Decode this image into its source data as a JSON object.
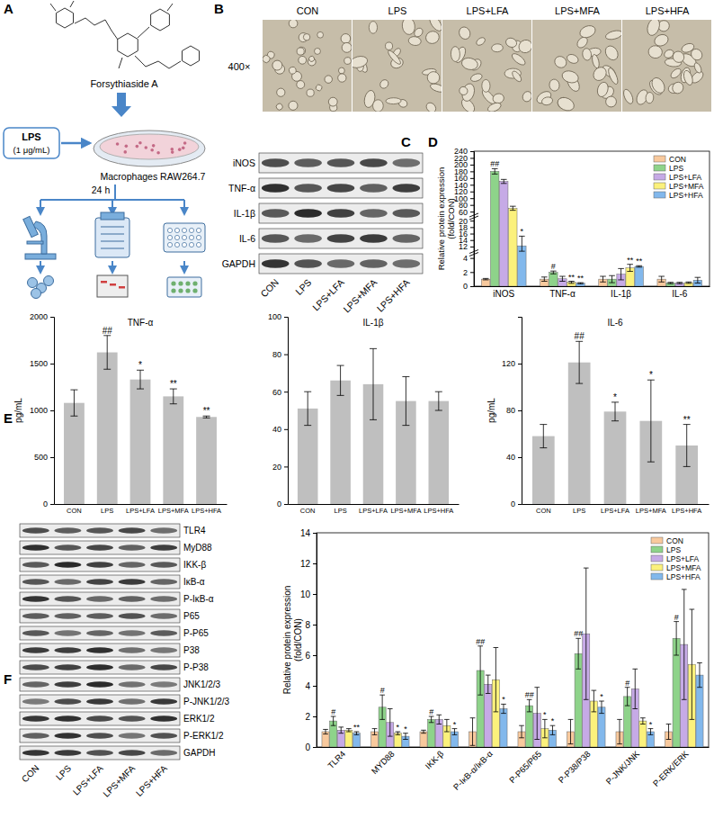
{
  "panel_labels": [
    "A",
    "B",
    "C",
    "D",
    "E",
    "F"
  ],
  "groups": [
    "CON",
    "LPS",
    "LPS+LFA",
    "LPS+MFA",
    "LPS+HFA"
  ],
  "schematic": {
    "compound": "Forsythiaside A",
    "stimulus": "LPS",
    "dose": "(1 μg/mL)",
    "cells": "Macrophages RAW264.7",
    "duration": "24 h"
  },
  "micrographs": {
    "magnification": "400×"
  },
  "blot_c": {
    "proteins": [
      "iNOS",
      "TNF-α",
      "IL-1β",
      "IL-6",
      "GAPDH"
    ]
  },
  "blot_f": {
    "proteins": [
      "TLR4",
      "MyD88",
      "IKK-β",
      "IκB-α",
      "P-IκB-α",
      "P65",
      "P-P65",
      "P38",
      "P-P38",
      "JNK1/2/3",
      "P-JNK1/2/3",
      "ERK1/2",
      "P-ERK1/2",
      "GAPDH"
    ]
  },
  "chart_data": [
    {
      "type": "bar",
      "categories": [
        "iNOS",
        "TNF-α",
        "IL-1β",
        "IL-6"
      ],
      "y_label": "Relative protein expression (fold/CON)",
      "ylim": [
        0,
        240
      ],
      "y_breaks": [
        [
          4.4,
          11
        ],
        [
          20.6,
          55
        ]
      ],
      "yticks": [
        0,
        2,
        4,
        12,
        14,
        16,
        18,
        20,
        60,
        80,
        100,
        120,
        140,
        160,
        180,
        200,
        220,
        240
      ],
      "legend": "upper right",
      "series": [
        {
          "name": "CON",
          "color": "#f8c99d",
          "values": [
            1,
            1,
            1,
            1
          ],
          "errors": [
            0.1,
            0.3,
            0.4,
            0.4
          ],
          "significance": [
            null,
            null,
            null,
            null
          ]
        },
        {
          "name": "LPS",
          "color": "#8ed38a",
          "values": [
            180,
            1.95,
            1,
            0.45
          ],
          "errors": [
            8,
            0.2,
            0.5,
            0.1
          ],
          "significance": [
            "##",
            "#",
            null,
            null
          ]
        },
        {
          "name": "LPS+LFA",
          "color": "#c6aae6",
          "values": [
            150,
            1.05,
            1.7,
            0.45
          ],
          "errors": [
            6,
            0.35,
            0.8,
            0.1
          ],
          "significance": [
            null,
            null,
            null,
            null
          ]
        },
        {
          "name": "LPS+MFA",
          "color": "#fbf17c",
          "values": [
            70,
            0.55,
            2.6,
            0.5
          ],
          "errors": [
            6,
            0.15,
            0.5,
            0.1
          ],
          "significance": [
            null,
            "**",
            "**",
            null
          ]
        },
        {
          "name": "LPS+HFA",
          "color": "#82b8ec",
          "values": [
            12.2,
            0.42,
            2.8,
            0.85
          ],
          "errors": [
            3,
            0.08,
            0.1,
            0.4
          ],
          "significance": [
            "*",
            "**",
            "**",
            null
          ]
        }
      ]
    },
    {
      "type": "bar",
      "title": "TNF-α",
      "y_label": "pg/mL",
      "categories": [
        "CON",
        "LPS",
        "LPS+LFA",
        "LPS+MFA",
        "LPS+HFA"
      ],
      "values": [
        1080,
        1620,
        1330,
        1150,
        930
      ],
      "errors": [
        140,
        180,
        100,
        80,
        10
      ],
      "significance": [
        null,
        "##",
        "*",
        "**",
        "**"
      ],
      "color": "#bfbfbf",
      "ylim": [
        0,
        2000
      ],
      "yticks": [
        0,
        500,
        1000,
        1500,
        2000
      ]
    },
    {
      "type": "bar",
      "title": "IL-1β",
      "categories": [
        "CON",
        "LPS",
        "LPS+LFA",
        "LPS+MFA",
        "LPS+HFA"
      ],
      "values": [
        51,
        66,
        64,
        55,
        55
      ],
      "errors": [
        9,
        8,
        19,
        13,
        5
      ],
      "color": "#bfbfbf",
      "ylim": [
        0,
        100
      ],
      "yticks": [
        0,
        20,
        40,
        60,
        80,
        100
      ]
    },
    {
      "type": "bar",
      "title": "IL-6",
      "y_label": "pg/mL",
      "categories": [
        "CON",
        "LPS",
        "LPS+LFA",
        "LPS+MFA",
        "LPS+HFA"
      ],
      "values": [
        58,
        121,
        79,
        71,
        50
      ],
      "errors": [
        10,
        18,
        8,
        35,
        18
      ],
      "significance": [
        null,
        "##",
        "*",
        "*",
        "**"
      ],
      "color": "#bfbfbf",
      "ylim": [
        0,
        160
      ],
      "yticks": [
        0,
        40,
        80,
        120
      ]
    },
    {
      "type": "bar",
      "categories": [
        "TLR4",
        "MYD88",
        "IKK-β",
        "P-IκB-α/IκB-α",
        "P-P65/P65",
        "P-P38/P38",
        "P-JNK/JNK",
        "P-ERK/ERK"
      ],
      "y_label": "Relative protein expression (fold/CON)",
      "ylim": [
        0,
        14
      ],
      "yticks": [
        0,
        2,
        4,
        6,
        8,
        10,
        12,
        14
      ],
      "legend": "upper right",
      "series": [
        {
          "name": "CON",
          "color": "#f8c99d",
          "values": [
            1,
            1,
            1,
            1,
            1,
            1,
            1,
            1
          ],
          "errors": [
            0.15,
            0.2,
            0.1,
            0.9,
            0.4,
            0.8,
            0.8,
            0.5
          ],
          "significance": [
            null,
            null,
            null,
            null,
            null,
            null,
            null,
            null
          ]
        },
        {
          "name": "LPS",
          "color": "#8ed38a",
          "values": [
            1.7,
            2.6,
            1.8,
            5.0,
            2.7,
            6.1,
            3.3,
            7.1
          ],
          "errors": [
            0.3,
            0.8,
            0.2,
            1.6,
            0.4,
            1.0,
            0.6,
            1.1
          ],
          "significance": [
            "#",
            "#",
            "#",
            "##",
            "##",
            "##",
            "#",
            "#"
          ]
        },
        {
          "name": "LPS+LFA",
          "color": "#c6aae6",
          "values": [
            1.1,
            1.6,
            1.8,
            4.1,
            2.2,
            7.4,
            3.8,
            6.7
          ],
          "errors": [
            0.2,
            0.9,
            0.3,
            0.6,
            1.7,
            4.3,
            1.3,
            3.6
          ],
          "significance": [
            null,
            null,
            null,
            null,
            null,
            null,
            null,
            null
          ]
        },
        {
          "name": "LPS+MFA",
          "color": "#fbf17c",
          "values": [
            1.1,
            0.9,
            1.4,
            4.4,
            1.2,
            3.0,
            1.7,
            5.4
          ],
          "errors": [
            0.1,
            0.1,
            0.4,
            2.1,
            0.6,
            0.7,
            0.2,
            3.6
          ],
          "significance": [
            null,
            "*",
            null,
            null,
            "*",
            null,
            null,
            null
          ]
        },
        {
          "name": "LPS+HFA",
          "color": "#82b8ec",
          "values": [
            0.9,
            0.7,
            1.0,
            2.5,
            1.1,
            2.6,
            1.0,
            4.7
          ],
          "errors": [
            0.1,
            0.2,
            0.2,
            0.3,
            0.3,
            0.4,
            0.2,
            0.8
          ],
          "significance": [
            "**",
            "*",
            "*",
            "*",
            "*",
            "*",
            "*",
            null
          ]
        }
      ]
    }
  ]
}
